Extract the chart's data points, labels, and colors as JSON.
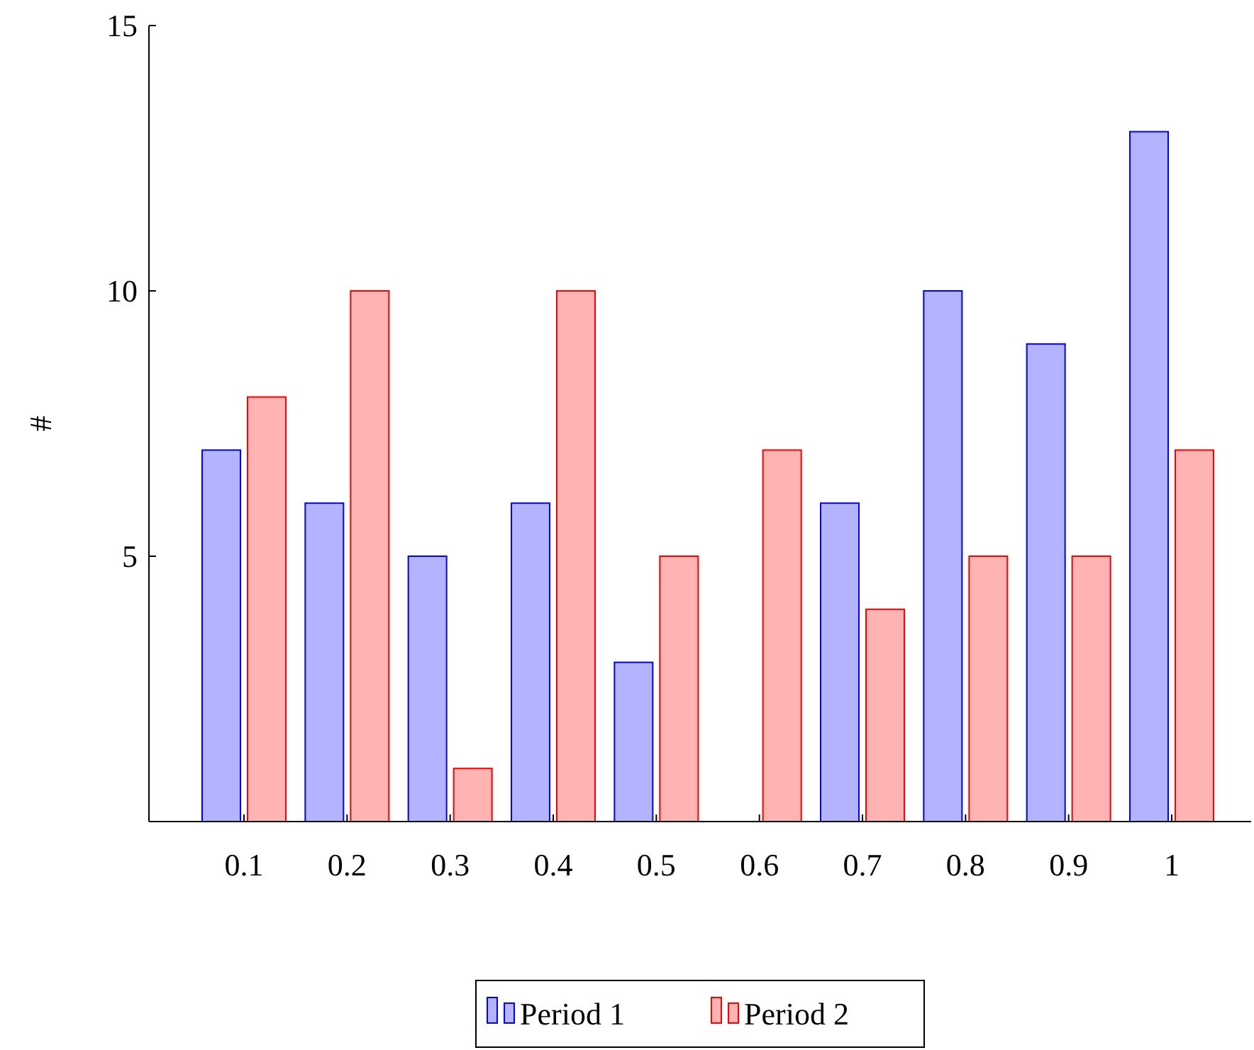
{
  "chart_data": {
    "type": "bar",
    "ylabel": "#",
    "categories": [
      "0.1",
      "0.2",
      "0.3",
      "0.4",
      "0.5",
      "0.6",
      "0.7",
      "0.8",
      "0.9",
      "1"
    ],
    "series": [
      {
        "name": "Period 1",
        "color": "#b3b3ff",
        "values": [
          7,
          6,
          5,
          6,
          3,
          0,
          6,
          10,
          9,
          13
        ]
      },
      {
        "name": "Period 2",
        "color": "#ffb3b3",
        "values": [
          8,
          10,
          1,
          10,
          5,
          7,
          4,
          5,
          5,
          7
        ]
      }
    ],
    "ylim": [
      0,
      15
    ],
    "yticks": [
      {
        "value": 0,
        "label": null
      },
      5,
      10,
      15
    ],
    "grid": false,
    "legend": "bottom"
  }
}
